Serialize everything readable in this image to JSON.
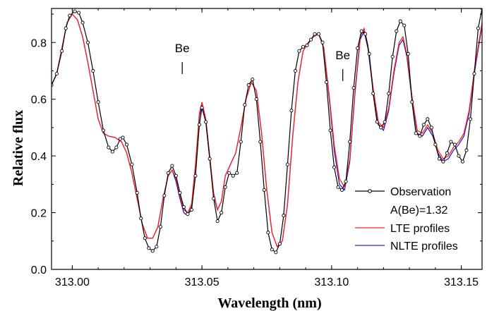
{
  "chart_data": {
    "type": "line",
    "xlabel": "Wavelength (nm)",
    "ylabel": "Relative flux",
    "xlim": [
      312.992,
      313.158
    ],
    "ylim": [
      0.0,
      0.92
    ],
    "x_ticks": [
      313.0,
      313.05,
      313.1,
      313.15
    ],
    "x_tick_labels": [
      "313.00",
      "313.05",
      "313.10",
      "313.15"
    ],
    "y_ticks": [
      0.0,
      0.2,
      0.4,
      0.6,
      0.8
    ],
    "y_tick_labels": [
      "0.0",
      "0.2",
      "0.4",
      "0.6",
      "0.8"
    ],
    "grid": false,
    "legend_position": "bottom-right",
    "legend": {
      "observation": "Observation",
      "abundance": "A(Be)=1.32",
      "lte": "LTE profiles",
      "nlte": "NLTE profiles"
    },
    "annotations": [
      {
        "text": "Be",
        "x": 313.0424
      },
      {
        "text": "Be",
        "x": 313.1043
      }
    ],
    "series": [
      {
        "name": "Observation",
        "color": "#000000",
        "marker": "open-circle",
        "points": [
          [
            312.992,
            0.65
          ],
          [
            312.994,
            0.69
          ],
          [
            312.996,
            0.77
          ],
          [
            312.9975,
            0.85
          ],
          [
            312.999,
            0.895
          ],
          [
            313.001,
            0.91
          ],
          [
            313.0025,
            0.905
          ],
          [
            313.004,
            0.87
          ],
          [
            313.006,
            0.8
          ],
          [
            313.008,
            0.7
          ],
          [
            313.01,
            0.59
          ],
          [
            313.012,
            0.49
          ],
          [
            313.014,
            0.43
          ],
          [
            313.0155,
            0.415
          ],
          [
            313.017,
            0.43
          ],
          [
            313.0185,
            0.46
          ],
          [
            313.0195,
            0.465
          ],
          [
            313.021,
            0.44
          ],
          [
            313.023,
            0.37
          ],
          [
            313.025,
            0.27
          ],
          [
            313.0265,
            0.18
          ],
          [
            313.028,
            0.11
          ],
          [
            313.0295,
            0.075
          ],
          [
            313.031,
            0.065
          ],
          [
            313.0325,
            0.08
          ],
          [
            313.034,
            0.15
          ],
          [
            313.0355,
            0.26
          ],
          [
            313.037,
            0.34
          ],
          [
            313.0385,
            0.365
          ],
          [
            313.04,
            0.33
          ],
          [
            313.0415,
            0.27
          ],
          [
            313.043,
            0.22
          ],
          [
            313.0445,
            0.195
          ],
          [
            313.046,
            0.21
          ],
          [
            313.0475,
            0.33
          ],
          [
            313.049,
            0.51
          ],
          [
            313.05,
            0.57
          ],
          [
            313.0515,
            0.52
          ],
          [
            313.053,
            0.39
          ],
          [
            313.0545,
            0.25
          ],
          [
            313.056,
            0.17
          ],
          [
            313.0575,
            0.2
          ],
          [
            313.059,
            0.29
          ],
          [
            313.0605,
            0.34
          ],
          [
            313.062,
            0.33
          ],
          [
            313.0635,
            0.34
          ],
          [
            313.065,
            0.45
          ],
          [
            313.0665,
            0.58
          ],
          [
            313.068,
            0.65
          ],
          [
            313.0695,
            0.67
          ],
          [
            313.071,
            0.6
          ],
          [
            313.0725,
            0.45
          ],
          [
            313.074,
            0.28
          ],
          [
            313.0755,
            0.13
          ],
          [
            313.077,
            0.07
          ],
          [
            313.0785,
            0.06
          ],
          [
            313.08,
            0.09
          ],
          [
            313.0815,
            0.19
          ],
          [
            313.083,
            0.37
          ],
          [
            313.0845,
            0.56
          ],
          [
            313.086,
            0.7
          ],
          [
            313.0875,
            0.77
          ],
          [
            313.089,
            0.785
          ],
          [
            313.0905,
            0.79
          ],
          [
            313.092,
            0.81
          ],
          [
            313.0935,
            0.83
          ],
          [
            313.095,
            0.83
          ],
          [
            313.0965,
            0.8
          ],
          [
            313.098,
            0.66
          ],
          [
            313.0995,
            0.49
          ],
          [
            313.101,
            0.36
          ],
          [
            313.1025,
            0.29
          ],
          [
            313.104,
            0.28
          ],
          [
            313.1055,
            0.31
          ],
          [
            313.107,
            0.45
          ],
          [
            313.1085,
            0.64
          ],
          [
            313.11,
            0.78
          ],
          [
            313.1115,
            0.84
          ],
          [
            313.113,
            0.83
          ],
          [
            313.1145,
            0.76
          ],
          [
            313.116,
            0.62
          ],
          [
            313.1175,
            0.52
          ],
          [
            313.119,
            0.5
          ],
          [
            313.1205,
            0.52
          ],
          [
            313.122,
            0.62
          ],
          [
            313.1235,
            0.75
          ],
          [
            313.125,
            0.84
          ],
          [
            313.1265,
            0.875
          ],
          [
            313.128,
            0.86
          ],
          [
            313.1295,
            0.76
          ],
          [
            313.131,
            0.59
          ],
          [
            313.1325,
            0.48
          ],
          [
            313.134,
            0.47
          ],
          [
            313.1355,
            0.51
          ],
          [
            313.137,
            0.53
          ],
          [
            313.1385,
            0.5
          ],
          [
            313.14,
            0.44
          ],
          [
            313.1415,
            0.39
          ],
          [
            313.143,
            0.38
          ],
          [
            313.1445,
            0.41
          ],
          [
            313.146,
            0.45
          ],
          [
            313.1475,
            0.44
          ],
          [
            313.149,
            0.4
          ],
          [
            313.1505,
            0.38
          ],
          [
            313.152,
            0.42
          ],
          [
            313.1535,
            0.53
          ],
          [
            313.155,
            0.69
          ],
          [
            313.1565,
            0.85
          ],
          [
            313.158,
            0.92
          ]
        ]
      },
      {
        "name": "LTE profiles",
        "color": "#ff2020",
        "marker": "none",
        "points": [
          [
            312.992,
            0.65
          ],
          [
            312.994,
            0.69
          ],
          [
            312.996,
            0.78
          ],
          [
            312.998,
            0.87
          ],
          [
            313.0,
            0.9
          ],
          [
            313.002,
            0.88
          ],
          [
            313.004,
            0.82
          ],
          [
            313.006,
            0.73
          ],
          [
            313.008,
            0.63
          ],
          [
            313.01,
            0.53
          ],
          [
            313.012,
            0.48
          ],
          [
            313.014,
            0.47
          ],
          [
            313.0165,
            0.465
          ],
          [
            313.019,
            0.45
          ],
          [
            313.021,
            0.41
          ],
          [
            313.023,
            0.34
          ],
          [
            313.025,
            0.25
          ],
          [
            313.027,
            0.16
          ],
          [
            313.029,
            0.11
          ],
          [
            313.031,
            0.11
          ],
          [
            313.033,
            0.15
          ],
          [
            313.035,
            0.25
          ],
          [
            313.037,
            0.33
          ],
          [
            313.0385,
            0.35
          ],
          [
            313.04,
            0.32
          ],
          [
            313.0415,
            0.26
          ],
          [
            313.043,
            0.21
          ],
          [
            313.0445,
            0.2
          ],
          [
            313.046,
            0.23
          ],
          [
            313.0475,
            0.37
          ],
          [
            313.049,
            0.55
          ],
          [
            313.05,
            0.59
          ],
          [
            313.0515,
            0.53
          ],
          [
            313.053,
            0.4
          ],
          [
            313.0545,
            0.27
          ],
          [
            313.056,
            0.21
          ],
          [
            313.0575,
            0.24
          ],
          [
            313.059,
            0.33
          ],
          [
            313.061,
            0.37
          ],
          [
            313.063,
            0.41
          ],
          [
            313.065,
            0.5
          ],
          [
            313.067,
            0.6
          ],
          [
            313.069,
            0.66
          ],
          [
            313.071,
            0.63
          ],
          [
            313.073,
            0.48
          ],
          [
            313.075,
            0.28
          ],
          [
            313.077,
            0.13
          ],
          [
            313.079,
            0.08
          ],
          [
            313.081,
            0.1
          ],
          [
            313.083,
            0.23
          ],
          [
            313.085,
            0.47
          ],
          [
            313.087,
            0.66
          ],
          [
            313.089,
            0.77
          ],
          [
            313.091,
            0.8
          ],
          [
            313.093,
            0.82
          ],
          [
            313.095,
            0.83
          ],
          [
            313.097,
            0.78
          ],
          [
            313.099,
            0.62
          ],
          [
            313.101,
            0.44
          ],
          [
            313.103,
            0.32
          ],
          [
            313.105,
            0.29
          ],
          [
            313.107,
            0.39
          ],
          [
            313.109,
            0.63
          ],
          [
            313.111,
            0.82
          ],
          [
            313.1125,
            0.85
          ],
          [
            313.114,
            0.79
          ],
          [
            313.116,
            0.64
          ],
          [
            313.118,
            0.52
          ],
          [
            313.12,
            0.5
          ],
          [
            313.122,
            0.57
          ],
          [
            313.124,
            0.7
          ],
          [
            313.126,
            0.8
          ],
          [
            313.1275,
            0.82
          ],
          [
            313.129,
            0.76
          ],
          [
            313.131,
            0.61
          ],
          [
            313.133,
            0.49
          ],
          [
            313.135,
            0.48
          ],
          [
            313.137,
            0.51
          ],
          [
            313.139,
            0.48
          ],
          [
            313.141,
            0.42
          ],
          [
            313.143,
            0.39
          ],
          [
            313.145,
            0.4
          ],
          [
            313.147,
            0.43
          ],
          [
            313.149,
            0.45
          ],
          [
            313.151,
            0.48
          ],
          [
            313.153,
            0.56
          ],
          [
            313.155,
            0.7
          ],
          [
            313.158,
            0.87
          ]
        ]
      },
      {
        "name": "NLTE profiles",
        "color": "#2020d0",
        "marker": "none",
        "points": [
          [
            312.992,
            0.65
          ],
          [
            312.994,
            0.69
          ],
          [
            312.996,
            0.78
          ],
          [
            312.998,
            0.87
          ],
          [
            313.0,
            0.9
          ],
          [
            313.002,
            0.88
          ],
          [
            313.004,
            0.82
          ],
          [
            313.006,
            0.73
          ],
          [
            313.008,
            0.63
          ],
          [
            313.01,
            0.53
          ],
          [
            313.012,
            0.48
          ],
          [
            313.014,
            0.47
          ],
          [
            313.0165,
            0.465
          ],
          [
            313.019,
            0.45
          ],
          [
            313.021,
            0.41
          ],
          [
            313.023,
            0.34
          ],
          [
            313.025,
            0.25
          ],
          [
            313.027,
            0.16
          ],
          [
            313.029,
            0.11
          ],
          [
            313.031,
            0.11
          ],
          [
            313.033,
            0.15
          ],
          [
            313.035,
            0.25
          ],
          [
            313.037,
            0.33
          ],
          [
            313.0385,
            0.35
          ],
          [
            313.04,
            0.31
          ],
          [
            313.0415,
            0.25
          ],
          [
            313.043,
            0.2
          ],
          [
            313.0445,
            0.19
          ],
          [
            313.046,
            0.22
          ],
          [
            313.0475,
            0.36
          ],
          [
            313.049,
            0.54
          ],
          [
            313.05,
            0.58
          ],
          [
            313.0515,
            0.52
          ],
          [
            313.053,
            0.39
          ],
          [
            313.0545,
            0.26
          ],
          [
            313.056,
            0.21
          ],
          [
            313.0575,
            0.24
          ],
          [
            313.059,
            0.33
          ],
          [
            313.061,
            0.37
          ],
          [
            313.063,
            0.41
          ],
          [
            313.065,
            0.5
          ],
          [
            313.067,
            0.6
          ],
          [
            313.069,
            0.66
          ],
          [
            313.071,
            0.63
          ],
          [
            313.073,
            0.48
          ],
          [
            313.075,
            0.28
          ],
          [
            313.077,
            0.13
          ],
          [
            313.079,
            0.08
          ],
          [
            313.081,
            0.1
          ],
          [
            313.083,
            0.23
          ],
          [
            313.085,
            0.47
          ],
          [
            313.087,
            0.66
          ],
          [
            313.089,
            0.77
          ],
          [
            313.091,
            0.8
          ],
          [
            313.093,
            0.82
          ],
          [
            313.095,
            0.83
          ],
          [
            313.097,
            0.78
          ],
          [
            313.099,
            0.61
          ],
          [
            313.101,
            0.42
          ],
          [
            313.103,
            0.3
          ],
          [
            313.105,
            0.28
          ],
          [
            313.107,
            0.38
          ],
          [
            313.109,
            0.62
          ],
          [
            313.111,
            0.81
          ],
          [
            313.1125,
            0.84
          ],
          [
            313.114,
            0.78
          ],
          [
            313.116,
            0.63
          ],
          [
            313.118,
            0.51
          ],
          [
            313.12,
            0.49
          ],
          [
            313.122,
            0.56
          ],
          [
            313.124,
            0.69
          ],
          [
            313.126,
            0.79
          ],
          [
            313.1275,
            0.81
          ],
          [
            313.129,
            0.75
          ],
          [
            313.131,
            0.6
          ],
          [
            313.133,
            0.48
          ],
          [
            313.135,
            0.47
          ],
          [
            313.137,
            0.5
          ],
          [
            313.139,
            0.47
          ],
          [
            313.141,
            0.41
          ],
          [
            313.143,
            0.38
          ],
          [
            313.145,
            0.39
          ],
          [
            313.147,
            0.42
          ],
          [
            313.149,
            0.44
          ],
          [
            313.151,
            0.47
          ],
          [
            313.153,
            0.55
          ],
          [
            313.155,
            0.69
          ],
          [
            313.158,
            0.86
          ]
        ]
      }
    ]
  }
}
